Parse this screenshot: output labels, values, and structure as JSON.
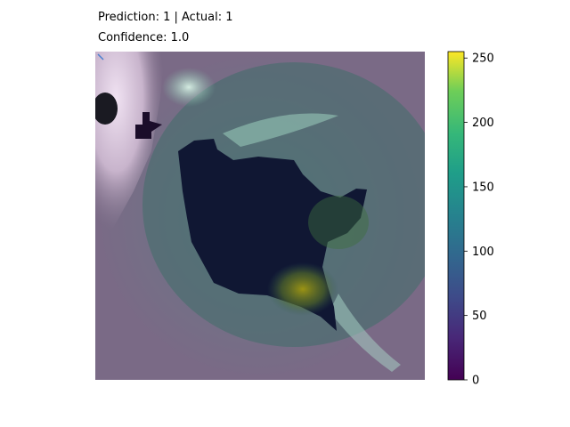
{
  "chart_data": {
    "type": "heatmap",
    "title_lines": [
      "Prediction: 1 | Actual: 1",
      "Confidence: 1.0"
    ],
    "colorbar": {
      "colormap": "viridis",
      "range": [
        0,
        255
      ],
      "ticks": [
        0,
        50,
        100,
        150,
        200,
        250
      ],
      "tick_labels": [
        "0",
        "50",
        "100",
        "150",
        "200",
        "250"
      ]
    },
    "axes_visible": false,
    "grid": false,
    "legend": "none",
    "overlay": {
      "description_free_colors": {
        "background_tissue": "#7a6a86",
        "bright_tissue": "#e8d6ee",
        "dark_region": "#0f1838",
        "hot_spot": "#8a8a18",
        "edge_glow": "#4f9a86"
      }
    }
  }
}
